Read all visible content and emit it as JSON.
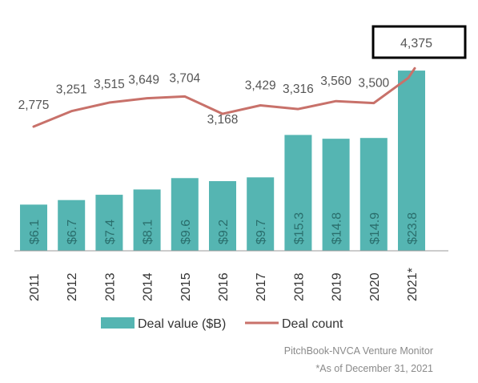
{
  "chart_data": {
    "type": "bar",
    "categories": [
      "2011",
      "2012",
      "2013",
      "2014",
      "2015",
      "2016",
      "2017",
      "2018",
      "2019",
      "2020",
      "2021*"
    ],
    "series": [
      {
        "name": "Deal value ($B)",
        "type": "bar",
        "values": [
          6.1,
          6.7,
          7.4,
          8.1,
          9.6,
          9.2,
          9.7,
          15.3,
          14.8,
          14.9,
          23.8
        ],
        "labels": [
          "$6.1",
          "$6.7",
          "$7.4",
          "$8.1",
          "$9.6",
          "$9.2",
          "$9.7",
          "$15.3",
          "$14.8",
          "$14.9",
          "$23.8"
        ]
      },
      {
        "name": "Deal count",
        "type": "line",
        "values": [
          2775,
          3251,
          3515,
          3649,
          3704,
          3168,
          3429,
          3316,
          3560,
          3500,
          4375
        ],
        "labels": [
          "2,775",
          "3,251",
          "3,515",
          "3,649",
          "3,704",
          "3,168",
          "3,429",
          "3,316",
          "3,560",
          "3,500",
          "4,375"
        ]
      }
    ],
    "highlighted_label": "4,375",
    "legend_position": "bottom",
    "grid": false
  },
  "source": {
    "line1": "PitchBook-NVCA Venture Monitor",
    "line2": "*As of December 31, 2021"
  },
  "colors": {
    "bar": "#55b5b2",
    "line": "#c8716a",
    "label": "#555555",
    "bar_label": "#2a6e6c",
    "axis": "#999999"
  }
}
